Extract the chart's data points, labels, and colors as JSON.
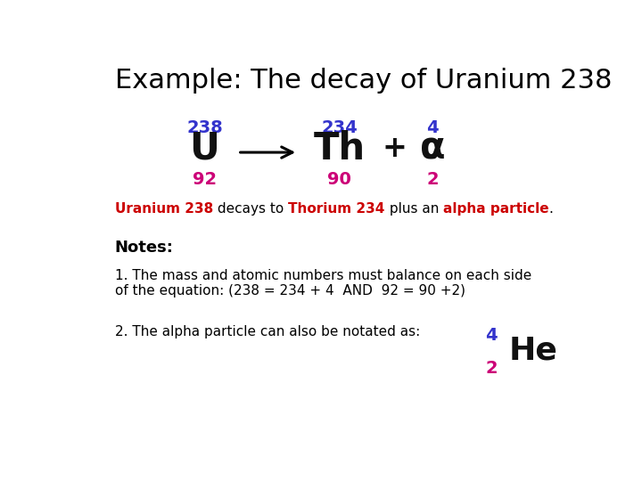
{
  "title": "Example: The decay of Uranium 238",
  "title_fontsize": 22,
  "title_color": "#000000",
  "bg_color": "#ffffff",
  "U_symbol": "U",
  "U_mass": "238",
  "U_atomic": "92",
  "Th_symbol": "Th",
  "Th_mass": "234",
  "Th_atomic": "90",
  "plus": "+",
  "alpha_symbol": "α",
  "alpha_mass": "4",
  "alpha_atomic": "2",
  "color_mass": "#3333cc",
  "color_atomic": "#cc0077",
  "color_symbol_dark": "#111111",
  "desc_line": [
    {
      "text": "Uranium 238",
      "color": "#cc0000",
      "bold": true
    },
    {
      "text": " decays to ",
      "color": "#000000",
      "bold": false
    },
    {
      "text": "Thorium 234",
      "color": "#cc0000",
      "bold": true
    },
    {
      "text": " plus an ",
      "color": "#000000",
      "bold": false
    },
    {
      "text": "alpha particle",
      "color": "#cc0000",
      "bold": true
    },
    {
      "text": ".",
      "color": "#000000",
      "bold": false
    }
  ],
  "notes_label": "Notes:",
  "note1": "1. The mass and atomic numbers must balance on each side\nof the equation: (238 = 234 + 4  AND  92 = 90 +2)",
  "note2_prefix": "2. The alpha particle can also be notated as:",
  "He_symbol": "He",
  "He_mass": "4",
  "He_atomic": "2"
}
